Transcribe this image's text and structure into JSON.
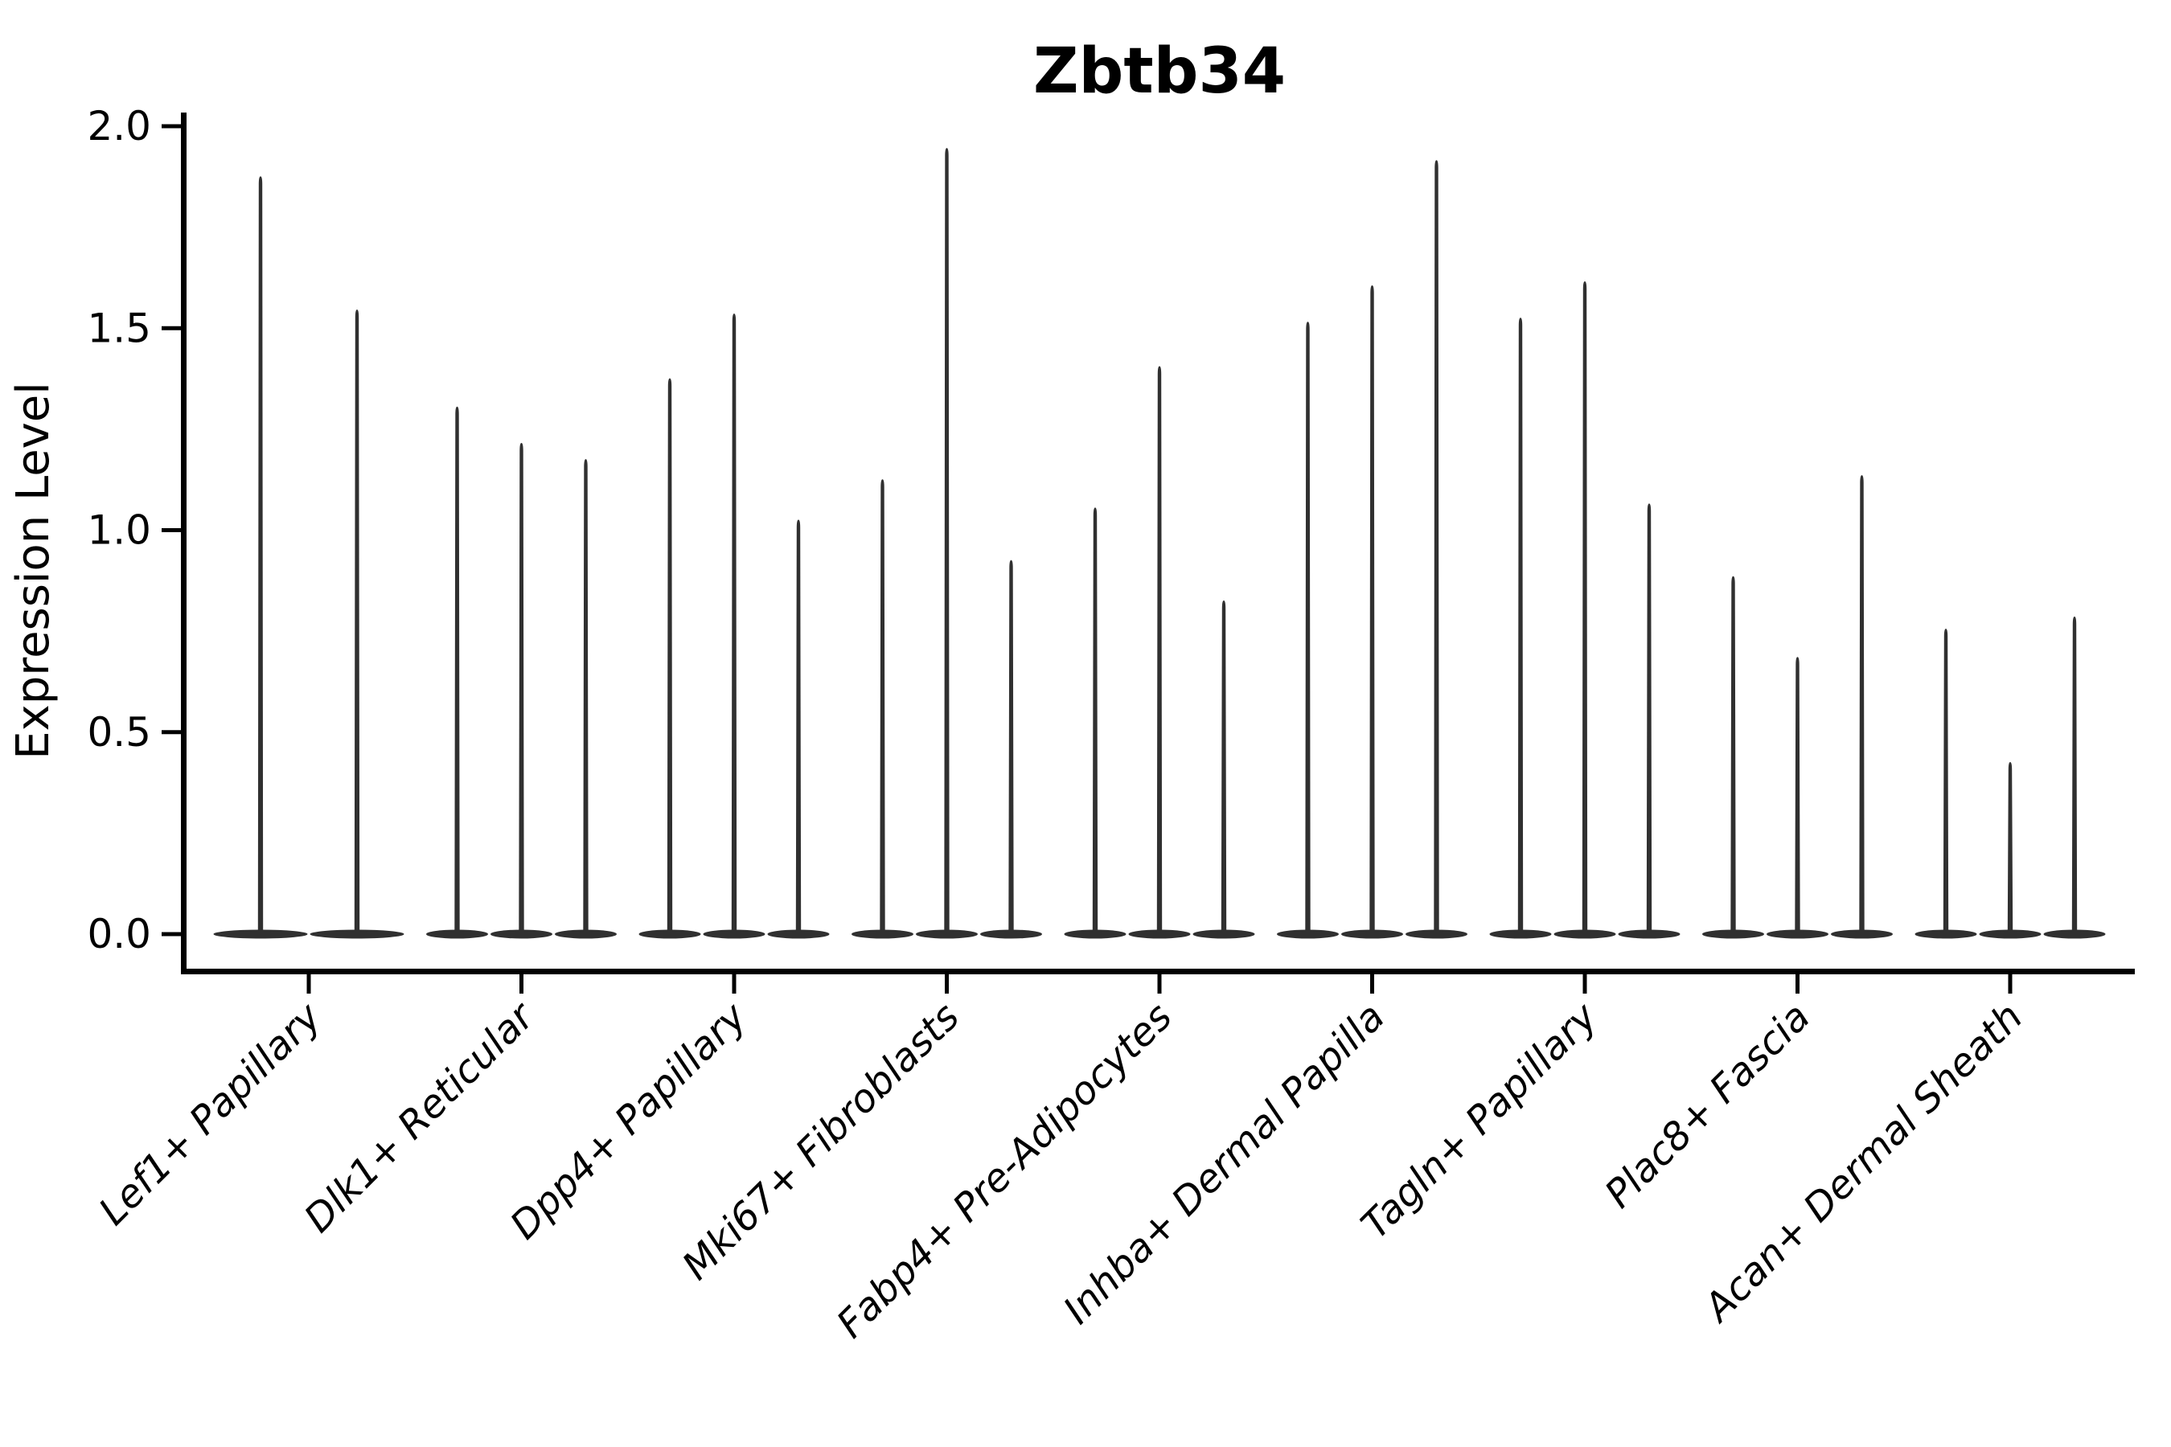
{
  "figure": {
    "background": "#ffffff"
  },
  "chart_data": {
    "type": "violin",
    "title": "Zbtb34",
    "xlabel": "",
    "ylabel": "Expression Level",
    "ylim": [
      -0.09,
      2.03
    ],
    "ytick_values": [
      0.0,
      0.5,
      1.0,
      1.5,
      2.0
    ],
    "grid": false,
    "legend": null,
    "categories": [
      "Lef1+ Papillary",
      "Dlk1+ Reticular",
      "Dpp4+ Papillary",
      "Mki67+ Fibroblasts",
      "Fabp4+ Pre-Adipocytes",
      "Inhba+ Dermal Papilla",
      "Tagln+ Papillary",
      "Plac8+ Fascia",
      "Acan+ Dermal Sheath"
    ],
    "groups": [
      {
        "category": "Lef1+ Papillary",
        "violin_maxima": [
          1.87,
          1.54
        ]
      },
      {
        "category": "Dlk1+ Reticular",
        "violin_maxima": [
          1.3,
          1.21,
          1.17
        ]
      },
      {
        "category": "Dpp4+ Papillary",
        "violin_maxima": [
          1.37,
          1.53,
          1.02
        ]
      },
      {
        "category": "Mki67+ Fibroblasts",
        "violin_maxima": [
          1.12,
          1.94,
          0.92
        ]
      },
      {
        "category": "Fabp4+ Pre-Adipocytes",
        "violin_maxima": [
          1.05,
          1.4,
          0.82
        ]
      },
      {
        "category": "Inhba+ Dermal Papilla",
        "violin_maxima": [
          1.51,
          1.6,
          1.91
        ]
      },
      {
        "category": "Tagln+ Papillary",
        "violin_maxima": [
          1.52,
          1.61,
          1.06
        ]
      },
      {
        "category": "Plac8+ Fascia",
        "violin_maxima": [
          0.88,
          0.68,
          1.13
        ]
      },
      {
        "category": "Acan+ Dermal Sheath",
        "violin_maxima": [
          0.75,
          0.42,
          0.78
        ]
      }
    ],
    "colors": {
      "violin": "#303030",
      "axis": "#000000",
      "text": "#000000"
    }
  }
}
